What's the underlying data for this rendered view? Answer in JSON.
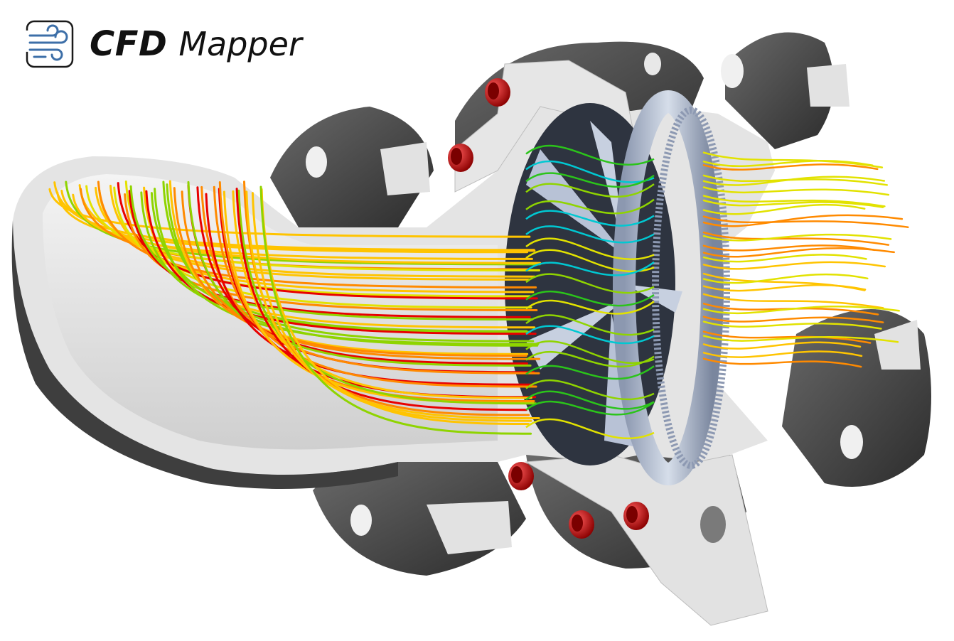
{
  "logo": {
    "title": "CFD",
    "subtitle": "Mapper",
    "icon": "wind-icon"
  },
  "colors": {
    "casing_dark": "#4a4a4a",
    "casing_light": "#e6e6e6",
    "section_face": "#d2d2d2",
    "rotor": "#b3bfd6",
    "rotor_dark": "#2e3440",
    "bolt": "#c40f0f",
    "logo_icon": "#3d6fa8"
  },
  "streamline_palette": [
    "#00c8d2",
    "#2bc41a",
    "#8fd400",
    "#e2e200",
    "#ffc400",
    "#ff8a00",
    "#e80000"
  ]
}
